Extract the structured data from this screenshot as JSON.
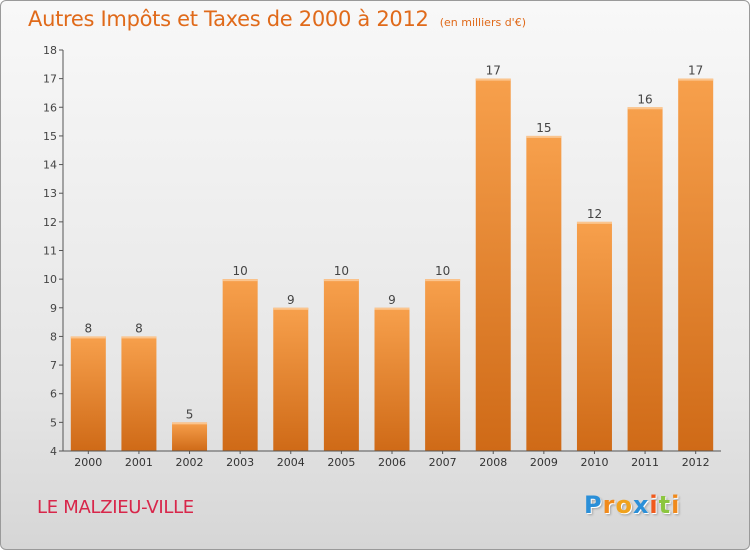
{
  "chart_data": {
    "type": "bar",
    "title": "Autres Impôts et Taxes de 2000 à 2012",
    "subtitle": "(en milliers d'€)",
    "categories": [
      "2000",
      "2001",
      "2002",
      "2003",
      "2004",
      "2005",
      "2006",
      "2007",
      "2008",
      "2009",
      "2010",
      "2011",
      "2012"
    ],
    "values": [
      8,
      8,
      5,
      10,
      9,
      10,
      9,
      10,
      17,
      15,
      12,
      16,
      17
    ],
    "ylim": [
      4,
      18
    ],
    "yticks": [
      4,
      5,
      6,
      7,
      8,
      9,
      10,
      11,
      12,
      13,
      14,
      15,
      16,
      17,
      18
    ],
    "grid": false,
    "bar_color_light": "#f7a04c",
    "bar_color_dark": "#cf6a17"
  },
  "location": "LE MALZIEU-VILLE",
  "brand": {
    "letters": [
      "P",
      "r",
      "o",
      "x",
      "i",
      "t",
      "i"
    ],
    "colors": [
      "#2a8fd8",
      "#f08a1c",
      "#f0a21c",
      "#2a8fd8",
      "#f05a1c",
      "#8cc63f",
      "#f08a1c"
    ]
  }
}
